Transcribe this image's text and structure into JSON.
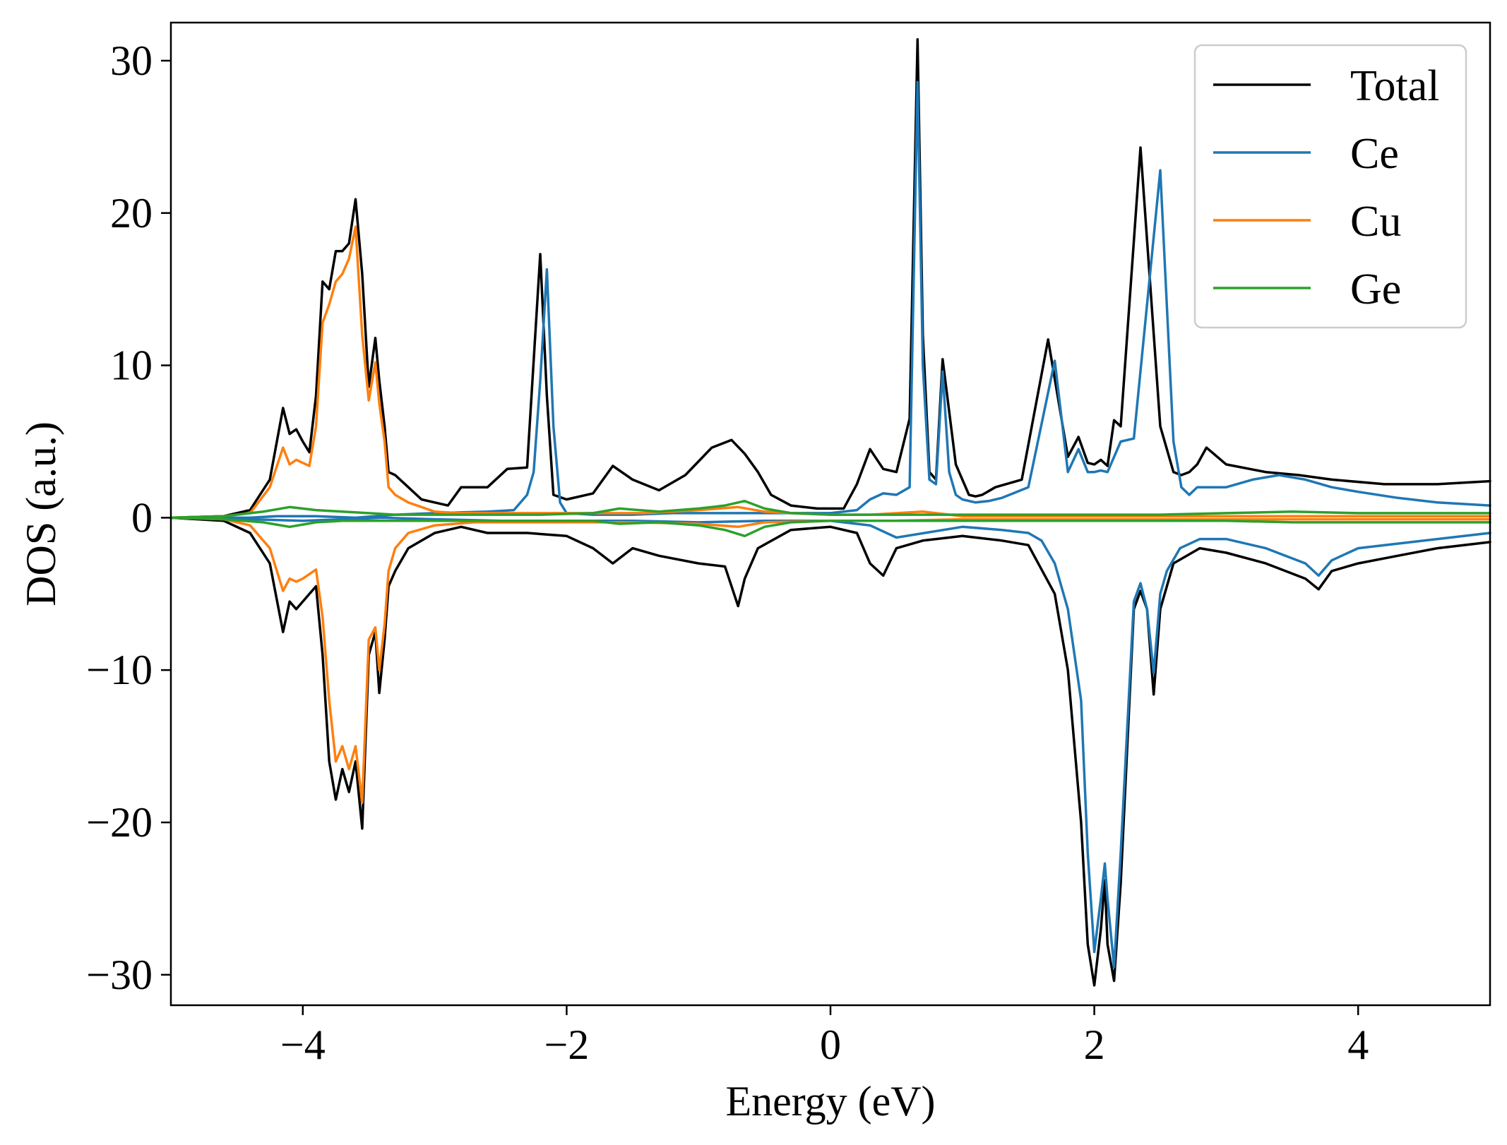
{
  "chart_data": {
    "type": "line",
    "title": "",
    "xlabel": "Energy (eV)",
    "ylabel": "DOS (a.u.)",
    "xlim": [
      -5,
      5
    ],
    "ylim": [
      -32,
      32.5
    ],
    "xticks": [
      -4,
      -2,
      0,
      2,
      4
    ],
    "xtick_labels": [
      "−4",
      "−2",
      "0",
      "2",
      "4"
    ],
    "yticks": [
      -30,
      -20,
      -10,
      0,
      10,
      20,
      30
    ],
    "ytick_labels": [
      "−30",
      "−20",
      "−10",
      "0",
      "10",
      "20",
      "30"
    ],
    "grid": false,
    "legend": {
      "position": "top-right",
      "entries": [
        "Total",
        "Ce",
        "Cu",
        "Ge"
      ]
    },
    "series": [
      {
        "name": "Total",
        "color": "#000000",
        "spin_up": {
          "x": [
            -5.0,
            -4.6,
            -4.4,
            -4.25,
            -4.15,
            -4.1,
            -4.05,
            -4.0,
            -3.95,
            -3.9,
            -3.85,
            -3.8,
            -3.75,
            -3.7,
            -3.65,
            -3.6,
            -3.55,
            -3.5,
            -3.45,
            -3.42,
            -3.38,
            -3.35,
            -3.3,
            -3.2,
            -3.1,
            -3.0,
            -2.9,
            -2.8,
            -2.6,
            -2.45,
            -2.3,
            -2.2,
            -2.15,
            -2.1,
            -2.0,
            -1.8,
            -1.65,
            -1.5,
            -1.3,
            -1.1,
            -0.9,
            -0.75,
            -0.65,
            -0.55,
            -0.45,
            -0.3,
            -0.1,
            0.1,
            0.2,
            0.3,
            0.4,
            0.5,
            0.6,
            0.66,
            0.7,
            0.75,
            0.8,
            0.85,
            0.95,
            1.05,
            1.1,
            1.15,
            1.25,
            1.45,
            1.65,
            1.8,
            1.88,
            1.95,
            2.0,
            2.05,
            2.1,
            2.15,
            2.2,
            2.35,
            2.5,
            2.6,
            2.66,
            2.72,
            2.78,
            2.85,
            3.0,
            3.3,
            3.55,
            3.8,
            4.2,
            4.6,
            5.0
          ],
          "y": [
            0.0,
            0.1,
            0.5,
            2.5,
            7.2,
            5.5,
            5.8,
            5.0,
            4.3,
            8.0,
            15.5,
            15.0,
            17.5,
            17.5,
            18.0,
            20.9,
            16.0,
            8.6,
            11.8,
            9.0,
            6.0,
            3.0,
            2.8,
            2.0,
            1.2,
            1.0,
            0.8,
            2.0,
            2.0,
            3.2,
            3.3,
            17.3,
            8.0,
            1.5,
            1.2,
            1.6,
            3.4,
            2.5,
            1.8,
            2.8,
            4.6,
            5.1,
            4.2,
            3.0,
            1.5,
            0.8,
            0.6,
            0.6,
            2.2,
            4.5,
            3.2,
            3.0,
            6.5,
            31.4,
            12.0,
            3.0,
            2.5,
            10.4,
            3.5,
            1.5,
            1.4,
            1.5,
            2.0,
            2.5,
            11.7,
            4.0,
            5.3,
            3.6,
            3.5,
            3.8,
            3.4,
            6.4,
            6.0,
            24.3,
            6.0,
            3.0,
            2.8,
            3.0,
            3.5,
            4.6,
            3.5,
            3.0,
            2.8,
            2.5,
            2.2,
            2.2,
            2.4
          ]
        },
        "spin_down": {
          "x": [
            -5.0,
            -4.6,
            -4.4,
            -4.25,
            -4.15,
            -4.1,
            -4.05,
            -4.0,
            -3.9,
            -3.85,
            -3.8,
            -3.75,
            -3.7,
            -3.65,
            -3.6,
            -3.55,
            -3.5,
            -3.45,
            -3.42,
            -3.38,
            -3.35,
            -3.3,
            -3.2,
            -3.0,
            -2.8,
            -2.6,
            -2.3,
            -2.0,
            -1.8,
            -1.65,
            -1.5,
            -1.3,
            -1.0,
            -0.8,
            -0.7,
            -0.65,
            -0.55,
            -0.3,
            0.0,
            0.2,
            0.3,
            0.4,
            0.5,
            0.7,
            1.0,
            1.3,
            1.5,
            1.7,
            1.8,
            1.9,
            1.95,
            2.0,
            2.05,
            2.08,
            2.1,
            2.15,
            2.2,
            2.3,
            2.35,
            2.4,
            2.45,
            2.5,
            2.6,
            2.8,
            3.0,
            3.3,
            3.6,
            3.7,
            3.8,
            4.0,
            4.3,
            4.6,
            5.0
          ],
          "y": [
            0.0,
            -0.2,
            -1.0,
            -3.0,
            -7.5,
            -5.5,
            -6.0,
            -5.5,
            -4.5,
            -9.0,
            -16.0,
            -18.5,
            -16.5,
            -18.0,
            -16.0,
            -20.4,
            -9.0,
            -7.5,
            -11.5,
            -8.0,
            -4.5,
            -3.5,
            -2.0,
            -1.0,
            -0.6,
            -1.0,
            -1.0,
            -1.2,
            -2.0,
            -3.0,
            -2.0,
            -2.5,
            -3.0,
            -3.2,
            -5.8,
            -4.0,
            -2.0,
            -0.8,
            -0.6,
            -1.0,
            -3.0,
            -3.8,
            -2.0,
            -1.5,
            -1.2,
            -1.5,
            -1.8,
            -5.0,
            -10.0,
            -20.0,
            -28.0,
            -30.7,
            -27.0,
            -23.8,
            -28.0,
            -30.4,
            -24.0,
            -6.0,
            -4.8,
            -6.0,
            -11.6,
            -6.0,
            -3.0,
            -2.0,
            -2.3,
            -3.0,
            -4.0,
            -4.7,
            -3.5,
            -3.0,
            -2.5,
            -2.0,
            -1.6
          ]
        }
      },
      {
        "name": "Ce",
        "color": "#1f77b4",
        "spin_up": {
          "x": [
            -5.0,
            -4.4,
            -4.2,
            -3.9,
            -3.6,
            -3.3,
            -3.0,
            -2.6,
            -2.4,
            -2.3,
            -2.25,
            -2.2,
            -2.15,
            -2.1,
            -2.05,
            -2.0,
            -1.8,
            -1.5,
            -1.2,
            -0.9,
            -0.6,
            -0.3,
            0.0,
            0.2,
            0.3,
            0.4,
            0.5,
            0.6,
            0.66,
            0.7,
            0.75,
            0.8,
            0.85,
            0.9,
            0.95,
            1.0,
            1.1,
            1.2,
            1.3,
            1.5,
            1.7,
            1.8,
            1.88,
            1.95,
            2.0,
            2.05,
            2.1,
            2.2,
            2.3,
            2.5,
            2.6,
            2.66,
            2.72,
            2.78,
            2.85,
            3.0,
            3.2,
            3.4,
            3.6,
            3.8,
            4.0,
            4.3,
            4.6,
            5.0
          ],
          "y": [
            0.0,
            0.0,
            0.1,
            0.1,
            0.0,
            0.2,
            0.3,
            0.4,
            0.5,
            1.5,
            3.0,
            9.0,
            16.3,
            6.0,
            1.0,
            0.3,
            0.2,
            0.2,
            0.3,
            0.3,
            0.3,
            0.3,
            0.3,
            0.5,
            1.2,
            1.6,
            1.5,
            2.0,
            28.6,
            10.0,
            2.5,
            2.2,
            9.6,
            3.0,
            1.5,
            1.2,
            1.0,
            1.1,
            1.3,
            2.0,
            10.3,
            3.0,
            4.5,
            3.0,
            3.0,
            3.1,
            3.0,
            5.0,
            5.2,
            22.8,
            5.0,
            2.0,
            1.5,
            2.0,
            2.0,
            2.0,
            2.5,
            2.8,
            2.5,
            2.0,
            1.7,
            1.3,
            1.0,
            0.8
          ]
        },
        "spin_down": {
          "x": [
            -5.0,
            -4.4,
            -4.0,
            -3.7,
            -3.4,
            -3.0,
            -2.5,
            -2.0,
            -1.5,
            -1.0,
            -0.5,
            0.0,
            0.3,
            0.5,
            1.0,
            1.3,
            1.5,
            1.6,
            1.7,
            1.8,
            1.9,
            1.95,
            2.0,
            2.05,
            2.08,
            2.1,
            2.15,
            2.2,
            2.3,
            2.35,
            2.4,
            2.45,
            2.5,
            2.55,
            2.65,
            2.8,
            3.0,
            3.3,
            3.6,
            3.7,
            3.8,
            4.0,
            4.3,
            4.6,
            5.0
          ],
          "y": [
            0.0,
            -0.1,
            -0.2,
            -0.1,
            0.0,
            -0.1,
            -0.2,
            -0.2,
            -0.2,
            -0.3,
            -0.2,
            -0.2,
            -0.5,
            -1.3,
            -0.6,
            -0.8,
            -1.0,
            -1.5,
            -3.0,
            -6.0,
            -12.0,
            -22.0,
            -28.5,
            -25.0,
            -22.7,
            -25.0,
            -29.5,
            -22.0,
            -5.5,
            -4.3,
            -6.0,
            -10.2,
            -5.0,
            -3.5,
            -2.0,
            -1.4,
            -1.4,
            -2.0,
            -3.0,
            -3.8,
            -2.8,
            -2.0,
            -1.7,
            -1.4,
            -1.0
          ]
        }
      },
      {
        "name": "Cu",
        "color": "#ff7f0e",
        "spin_up": {
          "x": [
            -5.0,
            -4.6,
            -4.4,
            -4.25,
            -4.15,
            -4.1,
            -4.05,
            -4.0,
            -3.95,
            -3.9,
            -3.85,
            -3.8,
            -3.75,
            -3.7,
            -3.65,
            -3.6,
            -3.55,
            -3.5,
            -3.45,
            -3.42,
            -3.38,
            -3.35,
            -3.3,
            -3.2,
            -3.0,
            -2.8,
            -2.6,
            -2.3,
            -2.0,
            -1.7,
            -1.4,
            -1.0,
            -0.7,
            -0.5,
            -0.3,
            0.0,
            0.3,
            0.7,
            1.0,
            1.5,
            2.0,
            2.5,
            3.0,
            3.5,
            4.0,
            4.5,
            5.0
          ],
          "y": [
            0.0,
            0.1,
            0.3,
            2.0,
            4.6,
            3.5,
            3.8,
            3.6,
            3.4,
            6.0,
            12.8,
            14.0,
            15.5,
            16.0,
            17.0,
            19.1,
            12.0,
            7.7,
            10.2,
            7.5,
            5.0,
            2.0,
            1.5,
            1.0,
            0.4,
            0.3,
            0.3,
            0.3,
            0.3,
            0.3,
            0.3,
            0.5,
            0.7,
            0.4,
            0.3,
            0.2,
            0.2,
            0.4,
            0.1,
            0.1,
            0.1,
            0.1,
            0.1,
            0.1,
            0.1,
            0.1,
            0.1
          ]
        },
        "spin_down": {
          "x": [
            -5.0,
            -4.6,
            -4.4,
            -4.25,
            -4.15,
            -4.1,
            -4.05,
            -4.0,
            -3.9,
            -3.85,
            -3.8,
            -3.75,
            -3.7,
            -3.65,
            -3.6,
            -3.55,
            -3.5,
            -3.45,
            -3.42,
            -3.38,
            -3.35,
            -3.3,
            -3.2,
            -3.0,
            -2.7,
            -2.3,
            -2.0,
            -1.5,
            -1.0,
            -0.7,
            -0.5,
            0.0,
            0.5,
            1.0,
            2.0,
            3.0,
            4.0,
            5.0
          ],
          "y": [
            0.0,
            -0.1,
            -0.5,
            -2.0,
            -4.8,
            -4.0,
            -4.2,
            -4.0,
            -3.4,
            -6.5,
            -12.0,
            -16.0,
            -15.0,
            -16.5,
            -15.0,
            -18.7,
            -8.0,
            -7.2,
            -10.0,
            -7.0,
            -3.5,
            -2.0,
            -1.0,
            -0.5,
            -0.3,
            -0.3,
            -0.3,
            -0.3,
            -0.4,
            -0.6,
            -0.3,
            -0.2,
            -0.2,
            -0.1,
            -0.1,
            -0.1,
            -0.1,
            -0.1
          ]
        }
      },
      {
        "name": "Ge",
        "color": "#2ca02c",
        "spin_up": {
          "x": [
            -5.0,
            -4.6,
            -4.3,
            -4.1,
            -3.9,
            -3.7,
            -3.5,
            -3.3,
            -3.0,
            -2.6,
            -2.2,
            -1.8,
            -1.6,
            -1.3,
            -1.0,
            -0.8,
            -0.65,
            -0.5,
            -0.3,
            0.0,
            0.3,
            0.5,
            0.8,
            1.0,
            1.5,
            2.0,
            2.5,
            3.0,
            3.5,
            4.0,
            4.5,
            5.0
          ],
          "y": [
            0.0,
            0.1,
            0.4,
            0.7,
            0.5,
            0.4,
            0.3,
            0.2,
            0.2,
            0.2,
            0.2,
            0.3,
            0.6,
            0.4,
            0.6,
            0.8,
            1.1,
            0.6,
            0.3,
            0.2,
            0.2,
            0.2,
            0.2,
            0.2,
            0.2,
            0.2,
            0.2,
            0.3,
            0.4,
            0.3,
            0.3,
            0.3
          ]
        },
        "spin_down": {
          "x": [
            -5.0,
            -4.6,
            -4.3,
            -4.1,
            -3.9,
            -3.7,
            -3.5,
            -3.3,
            -3.0,
            -2.6,
            -2.2,
            -1.8,
            -1.6,
            -1.3,
            -1.0,
            -0.8,
            -0.65,
            -0.5,
            -0.3,
            0.0,
            0.3,
            0.5,
            0.8,
            1.0,
            1.5,
            2.0,
            2.5,
            3.0,
            3.5,
            4.0,
            4.5,
            5.0
          ],
          "y": [
            0.0,
            -0.1,
            -0.3,
            -0.6,
            -0.3,
            -0.2,
            -0.2,
            -0.2,
            -0.2,
            -0.2,
            -0.2,
            -0.2,
            -0.4,
            -0.3,
            -0.5,
            -0.8,
            -1.2,
            -0.6,
            -0.3,
            -0.2,
            -0.2,
            -0.2,
            -0.2,
            -0.2,
            -0.2,
            -0.2,
            -0.2,
            -0.2,
            -0.3,
            -0.3,
            -0.3,
            -0.3
          ]
        }
      }
    ]
  }
}
